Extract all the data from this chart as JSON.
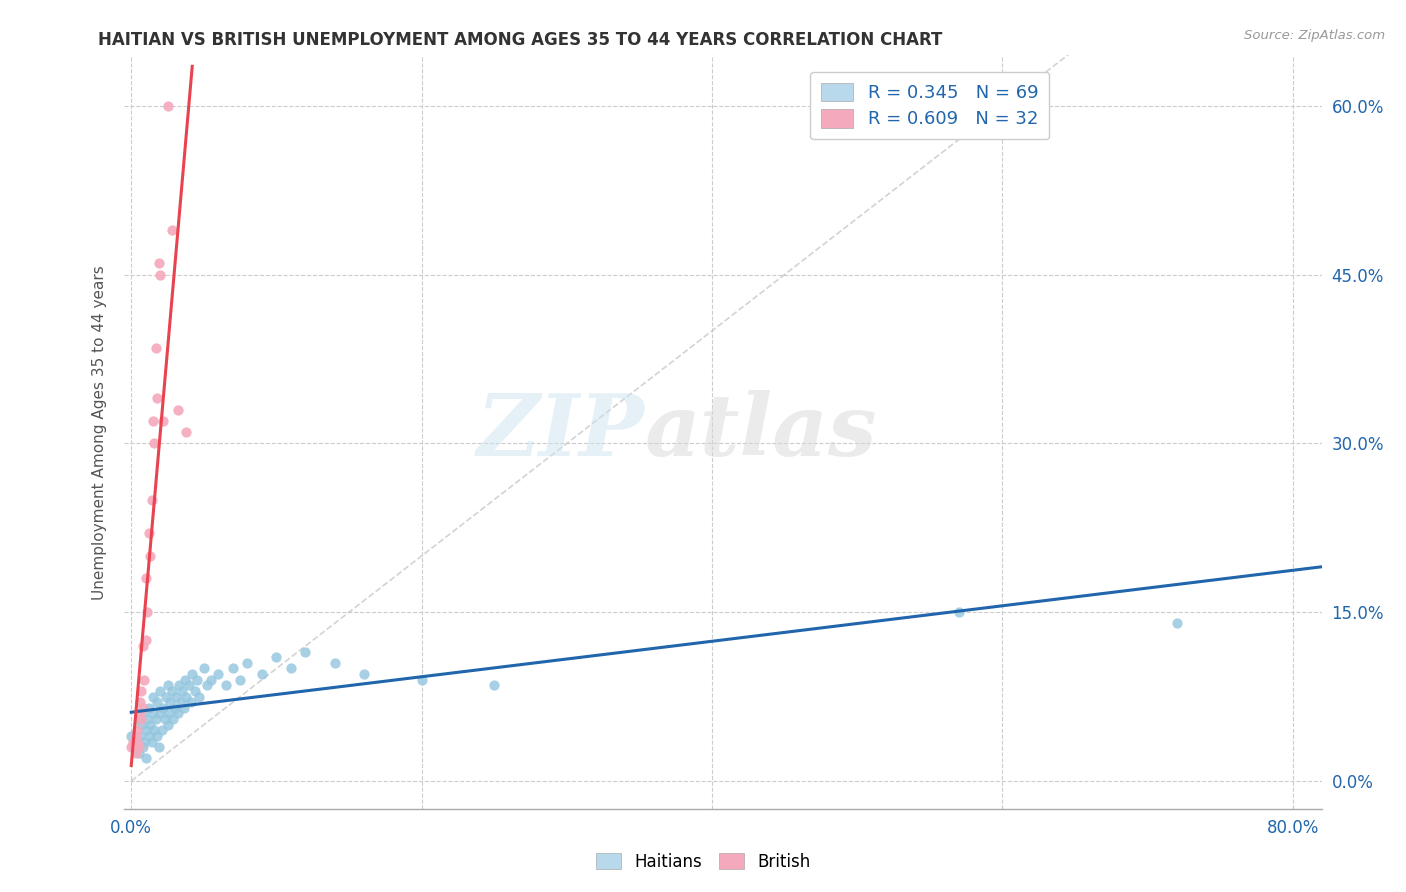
{
  "title": "HAITIAN VS BRITISH UNEMPLOYMENT AMONG AGES 35 TO 44 YEARS CORRELATION CHART",
  "source": "Source: ZipAtlas.com",
  "ylabel": "Unemployment Among Ages 35 to 44 years",
  "ytick_vals": [
    0.0,
    0.15,
    0.3,
    0.45,
    0.6
  ],
  "xlim": [
    -0.005,
    0.82
  ],
  "ylim": [
    -0.025,
    0.645
  ],
  "watermark_zip": "ZIP",
  "watermark_atlas": "atlas",
  "haitian_color": "#92c5de",
  "haitian_color_light": "#b8d9ec",
  "british_color": "#f4a9bc",
  "trend_haitian_color": "#2166ac",
  "trend_british_color": "#e8434e",
  "diagonal_color": "#c8c8c8",
  "haitian_scatter_x": [
    0.0,
    0.002,
    0.003,
    0.005,
    0.005,
    0.006,
    0.007,
    0.008,
    0.008,
    0.009,
    0.01,
    0.01,
    0.011,
    0.012,
    0.012,
    0.013,
    0.014,
    0.015,
    0.015,
    0.016,
    0.017,
    0.018,
    0.018,
    0.019,
    0.02,
    0.02,
    0.021,
    0.022,
    0.023,
    0.024,
    0.025,
    0.025,
    0.026,
    0.027,
    0.028,
    0.029,
    0.03,
    0.031,
    0.032,
    0.033,
    0.034,
    0.035,
    0.036,
    0.037,
    0.038,
    0.04,
    0.041,
    0.042,
    0.044,
    0.045,
    0.047,
    0.05,
    0.052,
    0.055,
    0.06,
    0.065,
    0.07,
    0.075,
    0.08,
    0.09,
    0.1,
    0.11,
    0.12,
    0.14,
    0.16,
    0.2,
    0.25,
    0.57,
    0.72
  ],
  "haitian_scatter_y": [
    0.04,
    0.035,
    0.03,
    0.055,
    0.025,
    0.04,
    0.05,
    0.03,
    0.06,
    0.035,
    0.045,
    0.02,
    0.055,
    0.04,
    0.065,
    0.05,
    0.035,
    0.06,
    0.075,
    0.045,
    0.055,
    0.04,
    0.07,
    0.03,
    0.06,
    0.08,
    0.045,
    0.065,
    0.055,
    0.075,
    0.05,
    0.085,
    0.06,
    0.07,
    0.08,
    0.055,
    0.065,
    0.075,
    0.06,
    0.085,
    0.07,
    0.08,
    0.065,
    0.09,
    0.075,
    0.085,
    0.07,
    0.095,
    0.08,
    0.09,
    0.075,
    0.1,
    0.085,
    0.09,
    0.095,
    0.085,
    0.1,
    0.09,
    0.105,
    0.095,
    0.11,
    0.1,
    0.115,
    0.105,
    0.095,
    0.09,
    0.085,
    0.15,
    0.14
  ],
  "british_scatter_x": [
    0.0,
    0.001,
    0.002,
    0.003,
    0.003,
    0.004,
    0.004,
    0.005,
    0.005,
    0.006,
    0.007,
    0.007,
    0.008,
    0.008,
    0.009,
    0.01,
    0.01,
    0.011,
    0.012,
    0.013,
    0.014,
    0.015,
    0.016,
    0.017,
    0.018,
    0.019,
    0.02,
    0.022,
    0.025,
    0.028,
    0.032,
    0.038
  ],
  "british_scatter_y": [
    0.03,
    0.035,
    0.03,
    0.04,
    0.025,
    0.045,
    0.035,
    0.06,
    0.03,
    0.07,
    0.055,
    0.08,
    0.065,
    0.12,
    0.09,
    0.125,
    0.18,
    0.15,
    0.22,
    0.2,
    0.25,
    0.32,
    0.3,
    0.385,
    0.34,
    0.46,
    0.45,
    0.32,
    0.6,
    0.49,
    0.33,
    0.31
  ]
}
